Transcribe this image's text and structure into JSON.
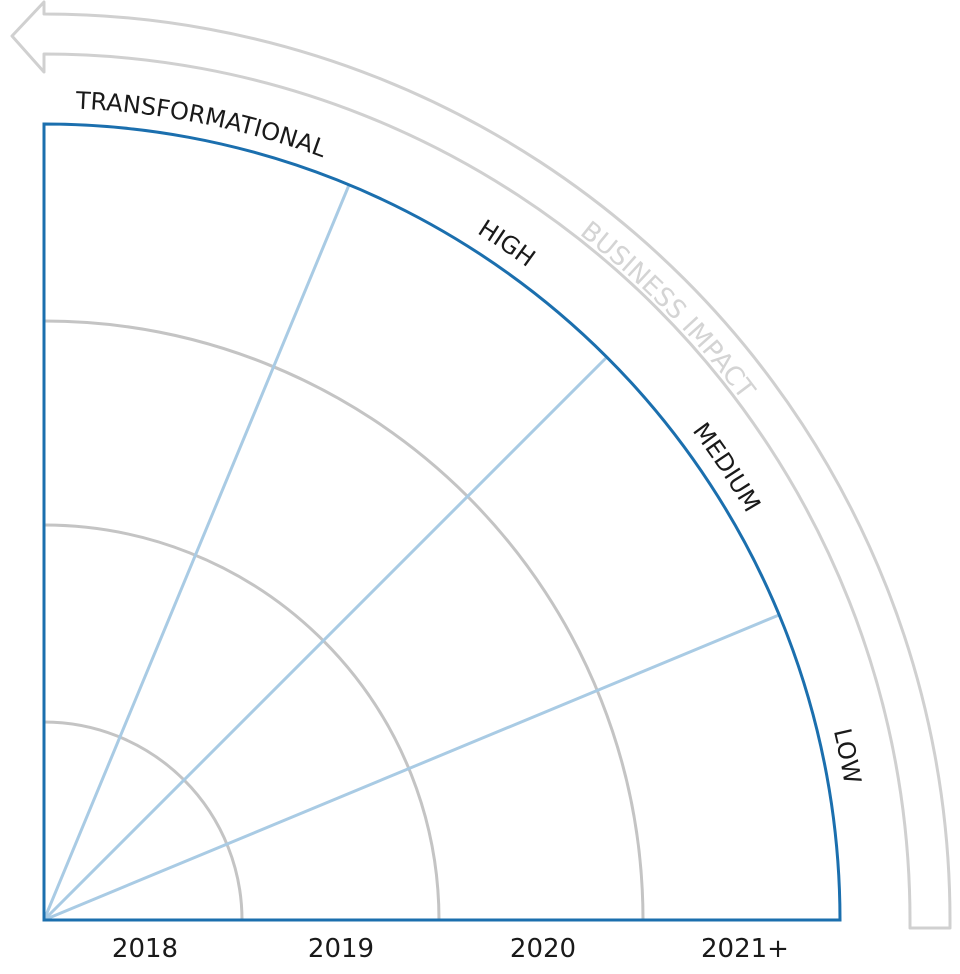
{
  "axis_label": "BUSINESS IMPACT",
  "impact_levels": [
    "TRANSFORMATIONAL",
    "HIGH",
    "MEDIUM",
    "LOW"
  ],
  "years": [
    "2018",
    "2019",
    "2020",
    "2021+"
  ]
}
